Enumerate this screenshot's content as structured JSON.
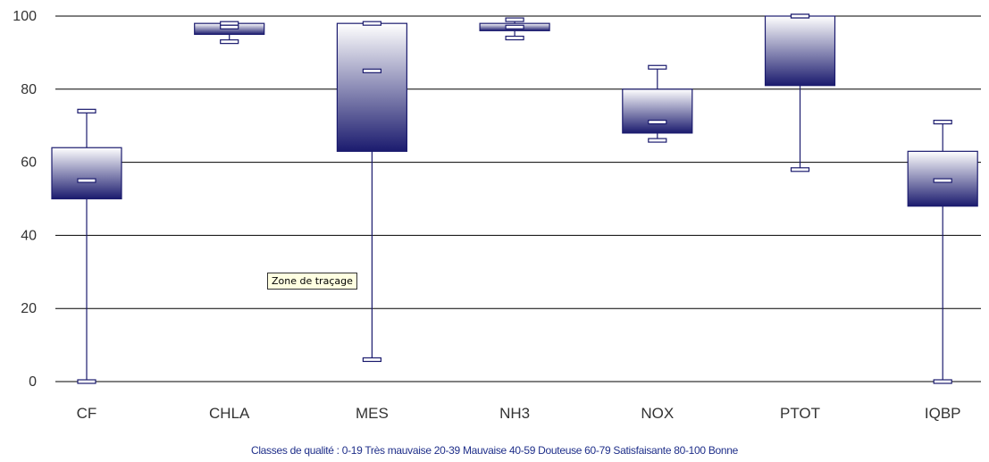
{
  "chart_data": {
    "type": "box",
    "categories": [
      "CF",
      "CHLA",
      "MES",
      "NH3",
      "NOX",
      "PTOT",
      "IQBP"
    ],
    "boxes": [
      {
        "category": "CF",
        "min": 0,
        "q1": 50,
        "median": 55,
        "q3": 64,
        "max": 74
      },
      {
        "category": "CHLA",
        "min": 93,
        "q1": 95,
        "median": 97,
        "q3": 98,
        "max": 98
      },
      {
        "category": "MES",
        "min": 6,
        "q1": 63,
        "median": 85,
        "q3": 98,
        "max": 98
      },
      {
        "category": "NH3",
        "min": 94,
        "q1": 96,
        "median": 97,
        "q3": 98,
        "max": 99
      },
      {
        "category": "NOX",
        "min": 66,
        "q1": 68,
        "median": 71,
        "q3": 80,
        "max": 86
      },
      {
        "category": "PTOT",
        "min": 58,
        "q1": 81,
        "median": 100,
        "q3": 100,
        "max": 100
      },
      {
        "category": "IQBP",
        "min": 0,
        "q1": 48,
        "median": 55,
        "q3": 63,
        "max": 71
      }
    ],
    "ylim": [
      0,
      100
    ],
    "yticks": [
      0,
      20,
      40,
      60,
      80,
      100
    ],
    "grid": true,
    "colors": {
      "box_top": "#ffffff",
      "box_bottom": "#1b1b6e",
      "stroke": "#1b1b6e",
      "grid": "#000000"
    }
  },
  "tooltip": {
    "text": "Zone de traçage"
  },
  "footer": {
    "text": "Classes de qualité :  0-19 Très mauvaise   20-39 Mauvaise   40-59 Douteuse   60-79 Satisfaisante   80-100 Bonne"
  }
}
